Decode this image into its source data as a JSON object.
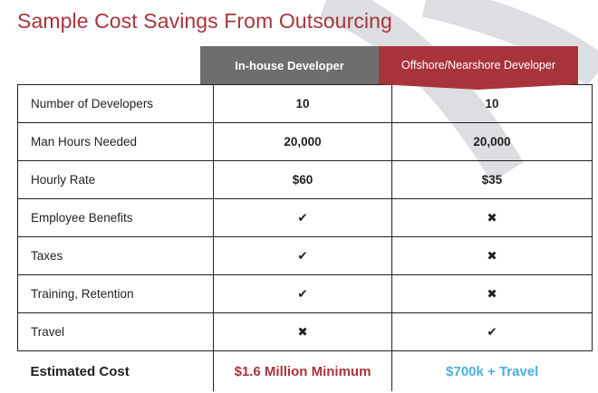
{
  "title": "Sample Cost Savings From Outsourcing",
  "columns": {
    "inhouse": "In-house Developer",
    "offshore": "Offshore/Nearshore Developer"
  },
  "colors": {
    "title": "#a8343b",
    "inhouse_header": "#6d6e70",
    "offshore_header": "#a8343b",
    "inhouse_total": "#a8343b",
    "offshore_total": "#4bb0d8",
    "decoration": "#dcdee2"
  },
  "rows": [
    {
      "label": "Number of Developers",
      "inhouse": "10",
      "offshore": "10"
    },
    {
      "label": "Man Hours Needed",
      "inhouse": "20,000",
      "offshore": "20,000"
    },
    {
      "label": "Hourly Rate",
      "inhouse": "$60",
      "offshore": "$35"
    },
    {
      "label": "Employee Benefits",
      "inhouse": "✔",
      "offshore": "✖"
    },
    {
      "label": "Taxes",
      "inhouse": "✔",
      "offshore": "✖"
    },
    {
      "label": "Training, Retention",
      "inhouse": "✔",
      "offshore": "✖"
    },
    {
      "label": "Travel",
      "inhouse": "✖",
      "offshore": "✔"
    }
  ],
  "total": {
    "label": "Estimated Cost",
    "inhouse": "$1.6 Million Minimum",
    "offshore": "$700k + Travel"
  }
}
